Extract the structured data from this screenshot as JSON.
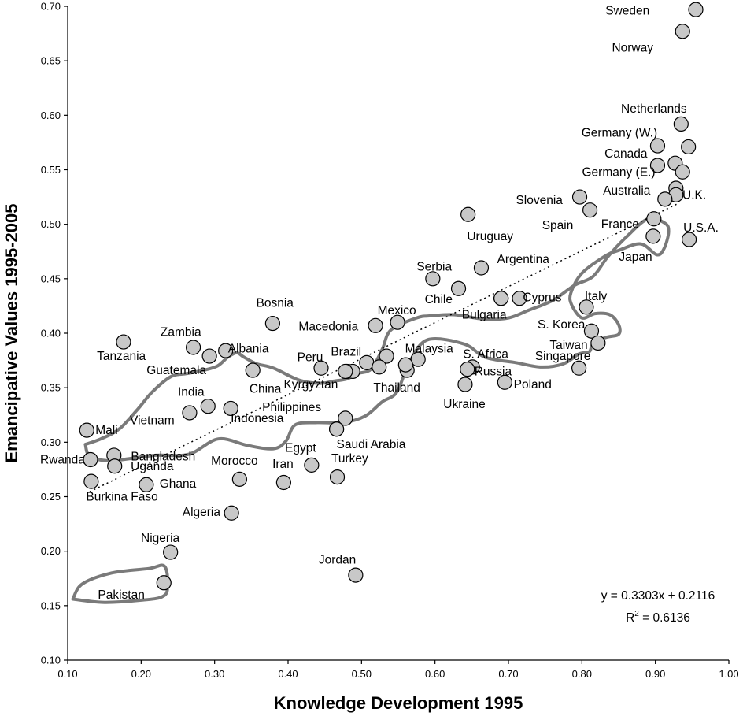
{
  "chart_data": {
    "type": "scatter",
    "xlabel": "Knowledge Development 1995",
    "ylabel": "Emancipative Values 1995-2005",
    "xlim": [
      0.1,
      1.0
    ],
    "ylim": [
      0.1,
      0.7
    ],
    "xticks": [
      "0.10",
      "0.20",
      "0.30",
      "0.40",
      "0.50",
      "0.60",
      "0.70",
      "0.80",
      "0.90",
      "1.00"
    ],
    "yticks": [
      "0.10",
      "0.15",
      "0.20",
      "0.25",
      "0.30",
      "0.35",
      "0.40",
      "0.45",
      "0.50",
      "0.55",
      "0.60",
      "0.65",
      "0.70"
    ],
    "grid": false,
    "trendline": {
      "slope": 0.3303,
      "intercept": 0.2116,
      "x_range": [
        0.13,
        0.93
      ],
      "equation": "y = 0.3303x + 0.2116",
      "r2_prefix": "R",
      "r2_exp": "2",
      "r2_suffix": " = 0.6136"
    },
    "points": [
      {
        "name": "Sweden",
        "x": 0.955,
        "y": 0.697
      },
      {
        "name": "Norway",
        "x": 0.937,
        "y": 0.677
      },
      {
        "name": "Netherlands",
        "x": 0.935,
        "y": 0.592
      },
      {
        "name": "",
        "x": 0.945,
        "y": 0.571
      },
      {
        "name": "Germany (W.)",
        "x": 0.903,
        "y": 0.572
      },
      {
        "name": "Canada",
        "x": 0.927,
        "y": 0.556
      },
      {
        "name": "Germany (E.)",
        "x": 0.903,
        "y": 0.554
      },
      {
        "name": "",
        "x": 0.937,
        "y": 0.548
      },
      {
        "name": "Australia",
        "x": 0.928,
        "y": 0.533
      },
      {
        "name": "U.K.",
        "x": 0.928,
        "y": 0.527
      },
      {
        "name": "",
        "x": 0.913,
        "y": 0.523
      },
      {
        "name": "Slovenia",
        "x": 0.797,
        "y": 0.525
      },
      {
        "name": "Spain",
        "x": 0.811,
        "y": 0.513
      },
      {
        "name": "France",
        "x": 0.898,
        "y": 0.505
      },
      {
        "name": "U.S.A.",
        "x": 0.946,
        "y": 0.486
      },
      {
        "name": "Japan",
        "x": 0.897,
        "y": 0.489
      },
      {
        "name": "Uruguay",
        "x": 0.645,
        "y": 0.509
      },
      {
        "name": "Serbia",
        "x": 0.597,
        "y": 0.45
      },
      {
        "name": "Argentina",
        "x": 0.663,
        "y": 0.46
      },
      {
        "name": "Chile",
        "x": 0.632,
        "y": 0.441
      },
      {
        "name": "",
        "x": 0.69,
        "y": 0.432
      },
      {
        "name": "Cyprus",
        "x": 0.715,
        "y": 0.432
      },
      {
        "name": "Italy",
        "x": 0.806,
        "y": 0.424
      },
      {
        "name": "Bulgaria",
        "x": 0.69,
        "y": 0.432
      },
      {
        "name": "S. Korea",
        "x": 0.813,
        "y": 0.402
      },
      {
        "name": "Taiwan",
        "x": 0.822,
        "y": 0.391
      },
      {
        "name": "Singapore",
        "x": 0.796,
        "y": 0.368
      },
      {
        "name": "Mexico",
        "x": 0.549,
        "y": 0.41
      },
      {
        "name": "Macedonia",
        "x": 0.519,
        "y": 0.407
      },
      {
        "name": "Bosnia",
        "x": 0.379,
        "y": 0.409
      },
      {
        "name": "Malaysia",
        "x": 0.577,
        "y": 0.376
      },
      {
        "name": "",
        "x": 0.534,
        "y": 0.379
      },
      {
        "name": "",
        "x": 0.507,
        "y": 0.373
      },
      {
        "name": "",
        "x": 0.524,
        "y": 0.369
      },
      {
        "name": "Thailand",
        "x": 0.562,
        "y": 0.366
      },
      {
        "name": "",
        "x": 0.56,
        "y": 0.371
      },
      {
        "name": "S. Africa",
        "x": 0.651,
        "y": 0.369
      },
      {
        "name": "Russia",
        "x": 0.644,
        "y": 0.367
      },
      {
        "name": "Ukraine",
        "x": 0.641,
        "y": 0.353
      },
      {
        "name": "Poland",
        "x": 0.695,
        "y": 0.355
      },
      {
        "name": "Brazil",
        "x": 0.48,
        "y": 0.365
      },
      {
        "name": "",
        "x": 0.488,
        "y": 0.365
      },
      {
        "name": "Kyrgyztan",
        "x": 0.478,
        "y": 0.365
      },
      {
        "name": "Peru",
        "x": 0.445,
        "y": 0.368
      },
      {
        "name": "China",
        "x": 0.352,
        "y": 0.366
      },
      {
        "name": "Albania",
        "x": 0.315,
        "y": 0.384
      },
      {
        "name": "Zambia",
        "x": 0.271,
        "y": 0.387
      },
      {
        "name": "Guatemala",
        "x": 0.293,
        "y": 0.379
      },
      {
        "name": "Tanzania",
        "x": 0.176,
        "y": 0.392
      },
      {
        "name": "India",
        "x": 0.291,
        "y": 0.333
      },
      {
        "name": "Vietnam",
        "x": 0.266,
        "y": 0.327
      },
      {
        "name": "",
        "x": 0.322,
        "y": 0.331
      },
      {
        "name": "Indonesia",
        "x": 0.478,
        "y": 0.322
      },
      {
        "name": "Philippines",
        "x": 0.466,
        "y": 0.312
      },
      {
        "name": "Saudi Arabia",
        "x": 0.466,
        "y": 0.312
      },
      {
        "name": "Mali",
        "x": 0.126,
        "y": 0.311
      },
      {
        "name": "Bangladesh",
        "x": 0.163,
        "y": 0.288
      },
      {
        "name": "Rwanda",
        "x": 0.131,
        "y": 0.284
      },
      {
        "name": "Uganda",
        "x": 0.164,
        "y": 0.278
      },
      {
        "name": "Burkina Faso",
        "x": 0.132,
        "y": 0.264
      },
      {
        "name": "Ghana",
        "x": 0.207,
        "y": 0.261
      },
      {
        "name": "Morocco",
        "x": 0.334,
        "y": 0.266
      },
      {
        "name": "Egypt",
        "x": 0.432,
        "y": 0.279
      },
      {
        "name": "Iran",
        "x": 0.394,
        "y": 0.263
      },
      {
        "name": "Turkey",
        "x": 0.467,
        "y": 0.268
      },
      {
        "name": "Algeria",
        "x": 0.323,
        "y": 0.235
      },
      {
        "name": "Nigeria",
        "x": 0.24,
        "y": 0.199
      },
      {
        "name": "Pakistan",
        "x": 0.231,
        "y": 0.171
      },
      {
        "name": "Jordan",
        "x": 0.492,
        "y": 0.178
      }
    ],
    "labels": [
      {
        "text": "Sweden",
        "x": 0.862,
        "y": 0.696
      },
      {
        "text": "Norway",
        "x": 0.869,
        "y": 0.662
      },
      {
        "text": "Netherlands",
        "x": 0.898,
        "y": 0.606
      },
      {
        "text": "Germany (W.)",
        "x": 0.851,
        "y": 0.584
      },
      {
        "text": "Canada",
        "x": 0.86,
        "y": 0.565
      },
      {
        "text": "Germany (E.)",
        "x": 0.85,
        "y": 0.548
      },
      {
        "text": "Australia",
        "x": 0.861,
        "y": 0.531
      },
      {
        "text": "U.K.",
        "x": 0.953,
        "y": 0.527
      },
      {
        "text": "Slovenia",
        "x": 0.742,
        "y": 0.522
      },
      {
        "text": "Spain",
        "x": 0.767,
        "y": 0.499
      },
      {
        "text": "France",
        "x": 0.852,
        "y": 0.5
      },
      {
        "text": "U.S.A.",
        "x": 0.962,
        "y": 0.497
      },
      {
        "text": "Japan",
        "x": 0.873,
        "y": 0.47
      },
      {
        "text": "Uruguay",
        "x": 0.675,
        "y": 0.489
      },
      {
        "text": "Serbia",
        "x": 0.599,
        "y": 0.461
      },
      {
        "text": "Argentina",
        "x": 0.72,
        "y": 0.468
      },
      {
        "text": "Chile",
        "x": 0.605,
        "y": 0.431
      },
      {
        "text": "Cyprus",
        "x": 0.746,
        "y": 0.433
      },
      {
        "text": "Italy",
        "x": 0.819,
        "y": 0.434
      },
      {
        "text": "Bulgaria",
        "x": 0.667,
        "y": 0.417
      },
      {
        "text": "S. Korea",
        "x": 0.772,
        "y": 0.408
      },
      {
        "text": "Taiwan",
        "x": 0.782,
        "y": 0.389
      },
      {
        "text": "Singapore",
        "x": 0.774,
        "y": 0.379
      },
      {
        "text": "Mexico",
        "x": 0.548,
        "y": 0.421
      },
      {
        "text": "Macedonia",
        "x": 0.455,
        "y": 0.406
      },
      {
        "text": "Bosnia",
        "x": 0.382,
        "y": 0.428
      },
      {
        "text": "Malaysia",
        "x": 0.592,
        "y": 0.386
      },
      {
        "text": "S. Africa",
        "x": 0.669,
        "y": 0.381
      },
      {
        "text": "Russia",
        "x": 0.679,
        "y": 0.365
      },
      {
        "text": "Ukraine",
        "x": 0.64,
        "y": 0.335
      },
      {
        "text": "Poland",
        "x": 0.733,
        "y": 0.353
      },
      {
        "text": "Brazil",
        "x": 0.479,
        "y": 0.383
      },
      {
        "text": "Peru",
        "x": 0.43,
        "y": 0.378
      },
      {
        "text": "Thailand",
        "x": 0.548,
        "y": 0.35
      },
      {
        "text": "Kyrgyztan",
        "x": 0.431,
        "y": 0.353
      },
      {
        "text": "China",
        "x": 0.369,
        "y": 0.349
      },
      {
        "text": "Albania",
        "x": 0.346,
        "y": 0.386
      },
      {
        "text": "Zambia",
        "x": 0.254,
        "y": 0.401
      },
      {
        "text": "Guatemala",
        "x": 0.248,
        "y": 0.366
      },
      {
        "text": "Tanzania",
        "x": 0.173,
        "y": 0.379
      },
      {
        "text": "India",
        "x": 0.268,
        "y": 0.346
      },
      {
        "text": "Vietnam",
        "x": 0.215,
        "y": 0.32
      },
      {
        "text": "Indonesia",
        "x": 0.358,
        "y": 0.322
      },
      {
        "text": "Philippines",
        "x": 0.405,
        "y": 0.332
      },
      {
        "text": "Saudi Arabia",
        "x": 0.513,
        "y": 0.298
      },
      {
        "text": "Mali",
        "x": 0.153,
        "y": 0.311
      },
      {
        "text": "Bangladesh",
        "x": 0.23,
        "y": 0.287
      },
      {
        "text": "Rwanda",
        "x": 0.093,
        "y": 0.284
      },
      {
        "text": "Uganda",
        "x": 0.215,
        "y": 0.278
      },
      {
        "text": "Burkina Faso",
        "x": 0.174,
        "y": 0.25
      },
      {
        "text": "Ghana",
        "x": 0.25,
        "y": 0.262
      },
      {
        "text": "Morocco",
        "x": 0.327,
        "y": 0.283
      },
      {
        "text": "Egypt",
        "x": 0.417,
        "y": 0.295
      },
      {
        "text": "Iran",
        "x": 0.393,
        "y": 0.28
      },
      {
        "text": "Turkey",
        "x": 0.484,
        "y": 0.285
      },
      {
        "text": "Algeria",
        "x": 0.282,
        "y": 0.236
      },
      {
        "text": "Nigeria",
        "x": 0.226,
        "y": 0.212
      },
      {
        "text": "Pakistan",
        "x": 0.173,
        "y": 0.16
      },
      {
        "text": "Jordan",
        "x": 0.467,
        "y": 0.192
      }
    ],
    "outlines": [
      {
        "name": "",
        "points": [
          [
            0.124,
            0.298
          ],
          [
            0.13,
            0.287
          ],
          [
            0.155,
            0.283
          ],
          [
            0.185,
            0.285
          ],
          [
            0.22,
            0.288
          ],
          [
            0.265,
            0.289
          ],
          [
            0.305,
            0.303
          ],
          [
            0.345,
            0.297
          ],
          [
            0.38,
            0.294
          ],
          [
            0.397,
            0.301
          ],
          [
            0.41,
            0.316
          ],
          [
            0.44,
            0.318
          ],
          [
            0.475,
            0.318
          ],
          [
            0.505,
            0.324
          ],
          [
            0.528,
            0.337
          ],
          [
            0.548,
            0.346
          ],
          [
            0.565,
            0.373
          ],
          [
            0.59,
            0.394
          ],
          [
            0.64,
            0.39
          ],
          [
            0.668,
            0.378
          ],
          [
            0.71,
            0.373
          ],
          [
            0.745,
            0.369
          ],
          [
            0.775,
            0.372
          ],
          [
            0.796,
            0.381
          ],
          [
            0.81,
            0.383
          ],
          [
            0.815,
            0.39
          ],
          [
            0.832,
            0.396
          ],
          [
            0.85,
            0.399
          ],
          [
            0.85,
            0.408
          ],
          [
            0.838,
            0.417
          ],
          [
            0.818,
            0.418
          ],
          [
            0.8,
            0.414
          ],
          [
            0.786,
            0.426
          ],
          [
            0.785,
            0.437
          ],
          [
            0.8,
            0.455
          ],
          [
            0.832,
            0.471
          ],
          [
            0.85,
            0.476
          ],
          [
            0.88,
            0.482
          ],
          [
            0.902,
            0.472
          ],
          [
            0.912,
            0.478
          ],
          [
            0.918,
            0.493
          ],
          [
            0.913,
            0.501
          ],
          [
            0.89,
            0.505
          ],
          [
            0.86,
            0.488
          ],
          [
            0.835,
            0.47
          ],
          [
            0.815,
            0.452
          ],
          [
            0.79,
            0.444
          ],
          [
            0.76,
            0.43
          ],
          [
            0.727,
            0.421
          ],
          [
            0.7,
            0.414
          ],
          [
            0.666,
            0.413
          ],
          [
            0.626,
            0.417
          ],
          [
            0.595,
            0.416
          ],
          [
            0.575,
            0.414
          ],
          [
            0.54,
            0.403
          ],
          [
            0.528,
            0.385
          ],
          [
            0.513,
            0.367
          ],
          [
            0.495,
            0.363
          ],
          [
            0.48,
            0.358
          ],
          [
            0.462,
            0.356
          ],
          [
            0.443,
            0.354
          ],
          [
            0.415,
            0.357
          ],
          [
            0.38,
            0.368
          ],
          [
            0.357,
            0.372
          ],
          [
            0.34,
            0.378
          ],
          [
            0.33,
            0.382
          ],
          [
            0.318,
            0.378
          ],
          [
            0.304,
            0.37
          ],
          [
            0.285,
            0.366
          ],
          [
            0.262,
            0.363
          ],
          [
            0.24,
            0.36
          ],
          [
            0.215,
            0.346
          ],
          [
            0.195,
            0.33
          ],
          [
            0.17,
            0.312
          ],
          [
            0.145,
            0.303
          ],
          [
            0.124,
            0.298
          ]
        ]
      },
      {
        "name": "",
        "points": [
          [
            0.107,
            0.156
          ],
          [
            0.12,
            0.17
          ],
          [
            0.16,
            0.18
          ],
          [
            0.21,
            0.184
          ],
          [
            0.232,
            0.186
          ],
          [
            0.236,
            0.166
          ],
          [
            0.228,
            0.158
          ],
          [
            0.2,
            0.155
          ],
          [
            0.15,
            0.153
          ],
          [
            0.107,
            0.156
          ]
        ]
      }
    ]
  }
}
